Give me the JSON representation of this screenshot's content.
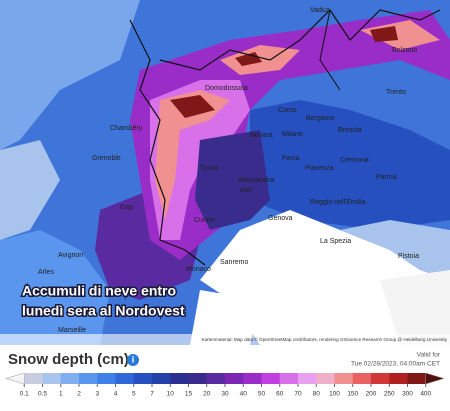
{
  "map": {
    "cities": [
      "Vaduz",
      "Bolzano",
      "Trento",
      "Domodossola",
      "Como",
      "Bergamo",
      "Brescia",
      "Novara",
      "Milano",
      "Torino",
      "Pavia",
      "Piacenza",
      "Cremona",
      "Parma",
      "Alessandria",
      "Asti",
      "Reggio nell'Emilia",
      "Genova",
      "Cuneo",
      "La Spezia",
      "Pistoia",
      "Grenoble",
      "Chambéry",
      "Gap",
      "Avignon",
      "Monaco",
      "Sanremo",
      "Arles",
      "Marseille"
    ],
    "caption": [
      "Accumuli di neve entro",
      "lunedì sera al Nordovest"
    ],
    "attribution": "Kartenmaterial: Map data © OpenStreetMap contributors, rendering GIScience Research Group @ Heidelberg University"
  },
  "legend": {
    "title": "Snow depth (cm)",
    "valid_label": "Valid for",
    "valid_time": "Tue 02/28/2023, 04:00am CET",
    "ticks": [
      0.1,
      0.5,
      1,
      2,
      3,
      4,
      5,
      7,
      10,
      15,
      20,
      30,
      40,
      50,
      60,
      70,
      80,
      100,
      150,
      200,
      250,
      300,
      400
    ],
    "colors": [
      "#f4f4f4",
      "#c8cce0",
      "#a8c4ec",
      "#80aef0",
      "#5a96ee",
      "#3f7fe8",
      "#2f66d8",
      "#2650c0",
      "#2340a8",
      "#2a3090",
      "#3a2c8c",
      "#5a2aa0",
      "#7a28b4",
      "#9a2cc8",
      "#c040e0",
      "#d870ea",
      "#e8a0f0",
      "#f0b0c8",
      "#f09090",
      "#e86060",
      "#d03838",
      "#b02020",
      "#801818",
      "#501010"
    ]
  }
}
